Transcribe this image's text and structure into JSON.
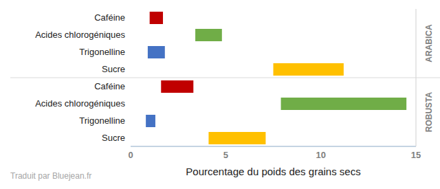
{
  "chart_data": {
    "type": "floating_bar",
    "orientation": "horizontal",
    "xlabel": "Pourcentage du poids des grains secs",
    "xlim": [
      0,
      15
    ],
    "xticks": [
      0,
      5,
      10,
      15
    ],
    "grid": false,
    "groups": [
      {
        "name": "ARABICA",
        "categories": [
          "Caféine",
          "Acides chlorogéniques",
          "Trigonelline",
          "Sucre"
        ],
        "starts": [
          1.0,
          3.4,
          0.9,
          7.5
        ],
        "ends": [
          1.7,
          4.8,
          1.8,
          11.2
        ],
        "colors": [
          "#c00000",
          "#70ad47",
          "#4472c4",
          "#ffc000"
        ]
      },
      {
        "name": "ROBUSTA",
        "categories": [
          "Caféine",
          "Acides chlorogéniques",
          "Trigonelline",
          "Sucre"
        ],
        "starts": [
          1.6,
          7.9,
          0.8,
          4.1
        ],
        "ends": [
          3.3,
          14.5,
          1.3,
          7.1
        ],
        "colors": [
          "#c00000",
          "#70ad47",
          "#4472c4",
          "#ffc000"
        ]
      }
    ]
  },
  "footer": "Traduit par Bluejean.fr"
}
